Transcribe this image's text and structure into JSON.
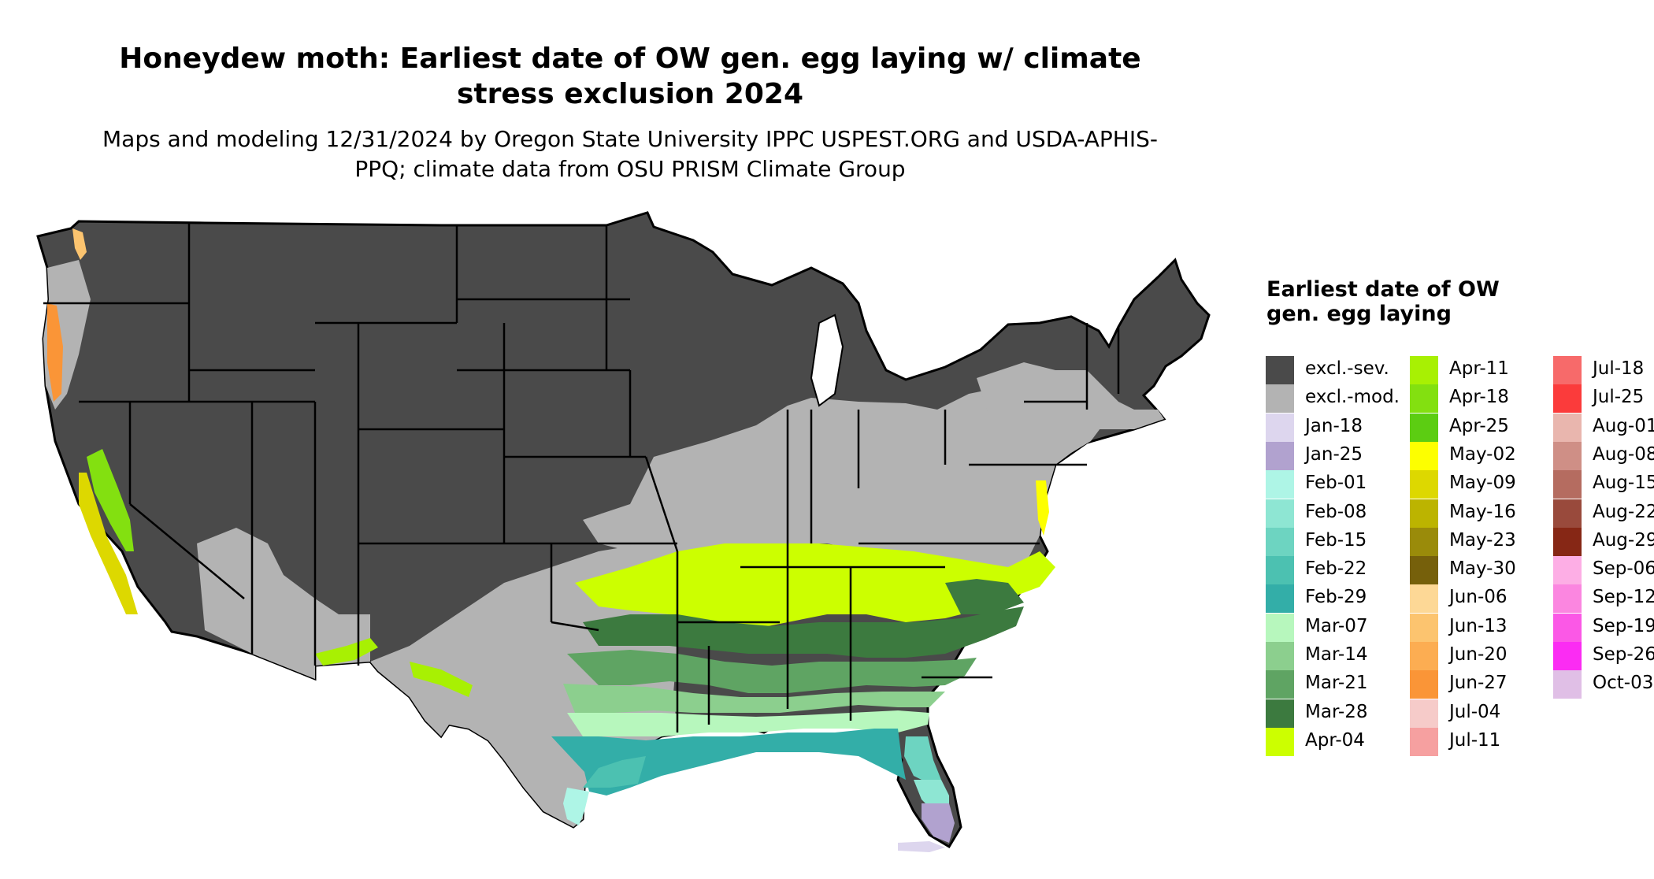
{
  "title": "Honeydew moth: Earliest date of OW gen. egg laying w/ climate stress exclusion 2024",
  "subtitle": "Maps and modeling 12/31/2024 by Oregon State University IPPC USPEST.ORG and USDA-APHIS-PPQ; climate data from OSU PRISM Climate Group",
  "legend": {
    "title": "Earliest date of OW gen. egg laying",
    "items": [
      {
        "label": "excl.-sev.",
        "color": "#4a4a4a"
      },
      {
        "label": "excl.-mod.",
        "color": "#b3b3b3"
      },
      {
        "label": "Jan-18",
        "color": "#ddd6ee"
      },
      {
        "label": "Jan-25",
        "color": "#b1a2cf"
      },
      {
        "label": "Feb-01",
        "color": "#aef5e6"
      },
      {
        "label": "Feb-08",
        "color": "#8ee6d3"
      },
      {
        "label": "Feb-15",
        "color": "#6dd4c1"
      },
      {
        "label": "Feb-22",
        "color": "#4cc1b1"
      },
      {
        "label": "Feb-29",
        "color": "#33aea8"
      },
      {
        "label": "Mar-07",
        "color": "#b7f7bd"
      },
      {
        "label": "Mar-14",
        "color": "#8ccf8e"
      },
      {
        "label": "Mar-21",
        "color": "#5fa463"
      },
      {
        "label": "Mar-28",
        "color": "#3c7a3f"
      },
      {
        "label": "Apr-04",
        "color": "#ccff00"
      },
      {
        "label": "Apr-11",
        "color": "#a8f003"
      },
      {
        "label": "Apr-18",
        "color": "#83e010"
      },
      {
        "label": "Apr-25",
        "color": "#5ccd12"
      },
      {
        "label": "May-02",
        "color": "#fdff00"
      },
      {
        "label": "May-09",
        "color": "#ddd800"
      },
      {
        "label": "May-16",
        "color": "#bcb400"
      },
      {
        "label": "May-23",
        "color": "#9a8b0a"
      },
      {
        "label": "May-30",
        "color": "#76600b"
      },
      {
        "label": "Jun-06",
        "color": "#fdd896"
      },
      {
        "label": "Jun-13",
        "color": "#fcc46f"
      },
      {
        "label": "Jun-20",
        "color": "#fcad52"
      },
      {
        "label": "Jun-27",
        "color": "#fa9537"
      },
      {
        "label": "Jul-04",
        "color": "#f6cbc9"
      },
      {
        "label": "Jul-11",
        "color": "#f6a0a0"
      },
      {
        "label": "Jul-18",
        "color": "#f76a6a"
      },
      {
        "label": "Jul-25",
        "color": "#fb3b3b"
      },
      {
        "label": "Aug-01",
        "color": "#e9b6ae"
      },
      {
        "label": "Aug-08",
        "color": "#cf8f86"
      },
      {
        "label": "Aug-15",
        "color": "#b56c60"
      },
      {
        "label": "Aug-22",
        "color": "#994a3c"
      },
      {
        "label": "Aug-29",
        "color": "#862715"
      },
      {
        "label": "Sep-06",
        "color": "#fdaee5"
      },
      {
        "label": "Sep-12",
        "color": "#fb86e0"
      },
      {
        "label": "Sep-19",
        "color": "#fb58e6"
      },
      {
        "label": "Sep-26",
        "color": "#fb2cf3"
      },
      {
        "label": "Oct-03",
        "color": "#e0bfe6"
      }
    ]
  }
}
